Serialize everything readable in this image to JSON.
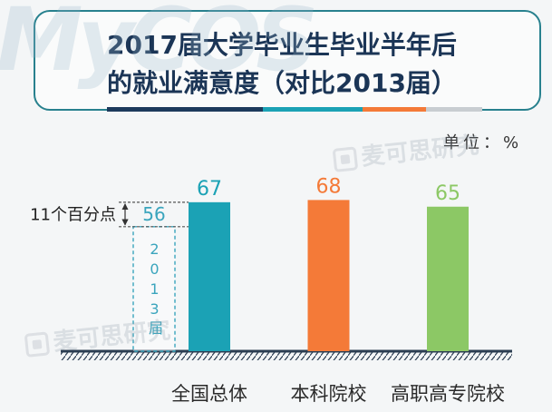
{
  "watermark": {
    "brand": "MyCOS",
    "label": "麦可思研究",
    "icon": "mycos-logo-icon"
  },
  "theme": {
    "title_color": "#1b3556",
    "frame_color": "#28818e",
    "ground_color": "#2b3d52"
  },
  "chart_data": {
    "type": "bar",
    "title_lines": [
      "2017届大学毕业生毕业半年后",
      "的就业满意度（对比2013届）"
    ],
    "unit_label": "单位：%",
    "categories": [
      "全国总体",
      "本科院校",
      "高职高专院校"
    ],
    "series": [
      {
        "values": [
          67,
          68,
          65
        ],
        "colors": [
          "#1ba2b5",
          "#f47a38",
          "#8cc865"
        ]
      },
      {
        "name": "2013届",
        "values": [
          56,
          null,
          null
        ],
        "color": "#3aa5bd"
      }
    ],
    "annotations": [
      {
        "text": "11个百分点"
      }
    ],
    "grid": false
  }
}
